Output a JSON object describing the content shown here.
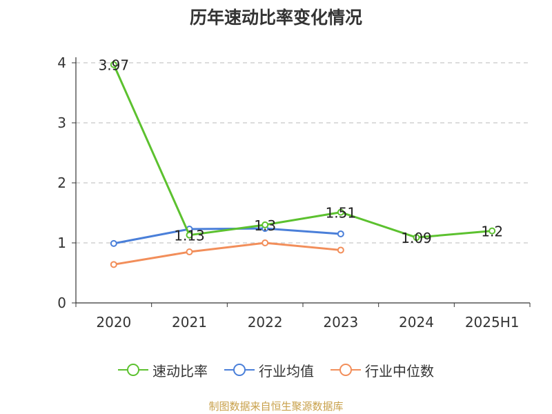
{
  "title": "历年速动比率变化情况",
  "source": "制图数据来自恒生聚源数据库",
  "chart_data": {
    "type": "line",
    "title": "历年速动比率变化情况",
    "categories": [
      "2020",
      "2021",
      "2022",
      "2023",
      "2024",
      "2025H1"
    ],
    "ylim": [
      0,
      4
    ],
    "yticks": [
      "0",
      "1",
      "2",
      "3",
      "4"
    ],
    "grid": true,
    "legend_position": "bottom",
    "series": [
      {
        "name": "速动比率",
        "color": "#5cc12f",
        "values": [
          3.97,
          1.13,
          1.3,
          1.51,
          1.09,
          1.2
        ],
        "labels": [
          "3.97",
          "1.13",
          "1.3",
          "1.51",
          "1.09",
          "1.2"
        ]
      },
      {
        "name": "行业均值",
        "color": "#4a7fd9",
        "values": [
          0.99,
          1.23,
          1.24,
          1.15,
          null,
          null
        ],
        "labels": []
      },
      {
        "name": "行业中位数",
        "color": "#f28e5a",
        "values": [
          0.64,
          0.85,
          1.0,
          0.88,
          null,
          null
        ],
        "labels": []
      }
    ]
  }
}
